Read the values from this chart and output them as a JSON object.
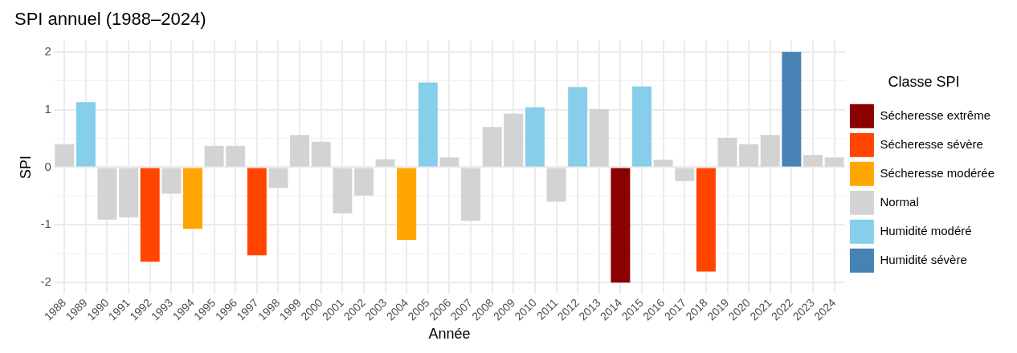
{
  "chart_data": {
    "type": "bar",
    "title": "SPI annuel (1988–2024)",
    "xlabel": "Année",
    "ylabel": "SPI",
    "legend_title": "Classe SPI",
    "categories": [
      "1988",
      "1989",
      "1990",
      "1991",
      "1992",
      "1993",
      "1994",
      "1995",
      "1996",
      "1997",
      "1998",
      "1999",
      "2000",
      "2001",
      "2002",
      "2003",
      "2004",
      "2005",
      "2006",
      "2007",
      "2008",
      "2009",
      "2010",
      "2011",
      "2012",
      "2013",
      "2014",
      "2015",
      "2016",
      "2017",
      "2018",
      "2019",
      "2020",
      "2021",
      "2022",
      "2023",
      "2024"
    ],
    "series": [
      {
        "name": "Sécheresse extrême",
        "color": "#8b0000",
        "values": [
          null,
          null,
          null,
          null,
          null,
          null,
          null,
          null,
          null,
          null,
          null,
          null,
          null,
          null,
          null,
          null,
          null,
          null,
          null,
          null,
          null,
          null,
          null,
          null,
          null,
          null,
          -2.0,
          null,
          null,
          null,
          null,
          null,
          null,
          null,
          null,
          null,
          null
        ]
      },
      {
        "name": "Sécheresse sévère",
        "color": "#ff4500",
        "values": [
          null,
          null,
          null,
          null,
          -1.64,
          null,
          null,
          null,
          null,
          -1.53,
          null,
          null,
          null,
          null,
          null,
          null,
          null,
          null,
          null,
          null,
          null,
          null,
          null,
          null,
          null,
          null,
          null,
          null,
          null,
          null,
          -1.81,
          null,
          null,
          null,
          null,
          null,
          null
        ]
      },
      {
        "name": "Sécheresse modérée",
        "color": "#ffa500",
        "values": [
          null,
          null,
          null,
          null,
          null,
          null,
          -1.07,
          null,
          null,
          null,
          null,
          null,
          null,
          null,
          null,
          null,
          -1.26,
          null,
          null,
          null,
          null,
          null,
          null,
          null,
          null,
          null,
          null,
          null,
          null,
          null,
          null,
          null,
          null,
          null,
          null,
          null,
          null
        ]
      },
      {
        "name": "Normal",
        "color": "#d3d3d3",
        "values": [
          0.4,
          null,
          -0.91,
          -0.87,
          null,
          -0.46,
          null,
          0.37,
          0.37,
          null,
          -0.36,
          0.56,
          0.44,
          -0.8,
          -0.49,
          0.14,
          null,
          null,
          0.17,
          -0.93,
          0.7,
          0.93,
          null,
          -0.6,
          null,
          1.01,
          null,
          null,
          0.13,
          -0.24,
          null,
          0.51,
          0.4,
          0.56,
          null,
          0.21,
          0.17
        ]
      },
      {
        "name": "Humidité modéré",
        "color": "#87ceeb",
        "values": [
          null,
          1.13,
          null,
          null,
          null,
          null,
          null,
          null,
          null,
          null,
          null,
          null,
          null,
          null,
          null,
          null,
          null,
          1.47,
          null,
          null,
          null,
          null,
          1.04,
          null,
          1.39,
          null,
          null,
          1.4,
          null,
          null,
          null,
          null,
          null,
          null,
          null,
          null,
          null
        ]
      },
      {
        "name": "Humidité sévère",
        "color": "#4682b4",
        "values": [
          null,
          null,
          null,
          null,
          null,
          null,
          null,
          null,
          null,
          null,
          null,
          null,
          null,
          null,
          null,
          null,
          null,
          null,
          null,
          null,
          null,
          null,
          null,
          null,
          null,
          null,
          null,
          null,
          null,
          null,
          null,
          null,
          null,
          null,
          2.0,
          null,
          null
        ]
      }
    ],
    "ylim": [
      -2.2,
      2.2
    ],
    "yticks": [
      -2,
      {
        "value": -1.5,
        "label": null
      },
      -1,
      {
        "value": -0.5,
        "label": null
      },
      0,
      {
        "value": 0.5,
        "label": null
      },
      1,
      {
        "value": 1.5,
        "label": null
      },
      2
    ],
    "grid": true,
    "legend": "right"
  }
}
